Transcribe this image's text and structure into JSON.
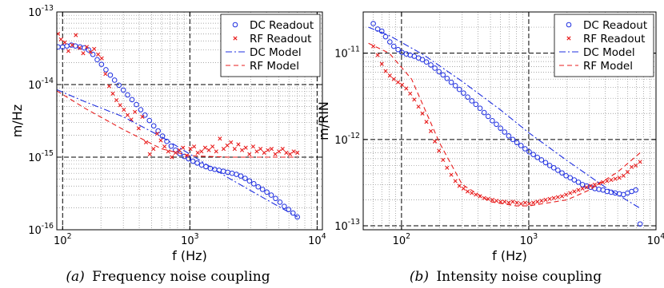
{
  "figure": {
    "caption_a_tag": "(a)",
    "caption_a_text": "Frequency noise coupling",
    "caption_b_tag": "(b)",
    "caption_b_text": "Intensity noise coupling"
  },
  "chart_data": [
    {
      "type": "scatter",
      "panel": "a",
      "xlabel": "f (Hz)",
      "ylabel": "m/Hz",
      "x_scale": "log",
      "y_scale": "log",
      "xlim": [
        90,
        11000
      ],
      "ylim": [
        1e-16,
        1e-13
      ],
      "x_ticks": [
        100,
        1000,
        10000
      ],
      "x_tick_labels": [
        "10^2",
        "10^3",
        "10^4"
      ],
      "y_ticks": [
        1e-16,
        1e-15,
        1e-14,
        1e-13
      ],
      "y_tick_labels": [
        "10^-16",
        "10^-15",
        "10^-14",
        "10^-13"
      ],
      "grid": true,
      "legend_position": "top-right",
      "series": [
        {
          "name": "DC Readout",
          "style": "marker",
          "marker": "circle",
          "color": "#1f2fe0",
          "x": [
            92,
            100,
            108,
            117,
            126,
            137,
            148,
            160,
            173,
            187,
            202,
            219,
            237,
            256,
            277,
            300,
            324,
            351,
            380,
            411,
            444,
            481,
            520,
            563,
            609,
            659,
            713,
            771,
            834,
            903,
            977,
            1057,
            1143,
            1237,
            1338,
            1448,
            1566,
            1695,
            1833,
            1984,
            2146,
            2322,
            2512,
            2718,
            2941,
            3181,
            3442,
            3724,
            4029,
            4359,
            4716,
            5102,
            5520,
            5972,
            6461,
            6990
          ],
          "y": [
            3.3e-14,
            3.3e-14,
            3.4e-14,
            3.5e-14,
            3.4e-14,
            3.3e-14,
            3.2e-14,
            3e-14,
            2.6e-14,
            2.2e-14,
            1.9e-14,
            1.6e-14,
            1.35e-14,
            1.15e-14,
            9.8e-15,
            8.4e-15,
            7.2e-15,
            6.2e-15,
            5.3e-15,
            4.5e-15,
            3.8e-15,
            3.2e-15,
            2.7e-15,
            2.3e-15,
            1.95e-15,
            1.65e-15,
            1.42e-15,
            1.25e-15,
            1.12e-15,
            1.02e-15,
            9.5e-16,
            8.8e-16,
            8.3e-16,
            7.8e-16,
            7.4e-16,
            7e-16,
            6.8e-16,
            6.6e-16,
            6.4e-16,
            6.2e-16,
            6e-16,
            5.8e-16,
            5.5e-16,
            5.1e-16,
            4.7e-16,
            4.3e-16,
            3.9e-16,
            3.6e-16,
            3.3e-16,
            3e-16,
            2.7e-16,
            2.4e-16,
            2.1e-16,
            1.9e-16,
            1.7e-16,
            1.5e-16
          ]
        },
        {
          "name": "RF Readout",
          "style": "marker",
          "marker": "x",
          "color": "#e81c1c",
          "x": [
            92,
            97,
            104,
            111,
            119,
            127,
            136,
            145,
            155,
            166,
            177,
            190,
            203,
            217,
            232,
            248,
            265,
            283,
            303,
            324,
            346,
            370,
            396,
            423,
            452,
            484,
            517,
            553,
            591,
            632,
            676,
            722,
            772,
            826,
            883,
            944,
            1009,
            1079,
            1153,
            1233,
            1318,
            1409,
            1506,
            1610,
            1722,
            1841,
            1968,
            2103,
            2249,
            2404,
            2570,
            2748,
            2937,
            3140,
            3357,
            3589,
            3837,
            4102,
            4385,
            4688,
            5011,
            5357,
            5727,
            6123,
            6545,
            6997
          ],
          "y": [
            5e-14,
            4.2e-14,
            3.8e-14,
            2.9e-14,
            3.5e-14,
            4.8e-14,
            3.2e-14,
            2.7e-14,
            3.3e-14,
            2.8e-14,
            3.1e-14,
            2.6e-14,
            2.3e-14,
            1.4e-14,
            9.5e-15,
            7.5e-15,
            6.1e-15,
            5.2e-15,
            4.5e-15,
            3.8e-15,
            3.3e-15,
            4.2e-15,
            2.5e-15,
            3.6e-15,
            1.6e-15,
            1.1e-15,
            1.3e-15,
            2.1e-15,
            1.7e-15,
            1.4e-15,
            1.2e-15,
            1e-15,
            1.15e-15,
            1.25e-15,
            1.35e-15,
            1.05e-15,
            1.3e-15,
            1.4e-15,
            1.15e-15,
            1.2e-15,
            1.35e-15,
            1.25e-15,
            1.4e-15,
            1.2e-15,
            1.8e-15,
            1.3e-15,
            1.45e-15,
            1.6e-15,
            1.3e-15,
            1.5e-15,
            1.25e-15,
            1.35e-15,
            1.1e-15,
            1.4e-15,
            1.2e-15,
            1.3e-15,
            1.15e-15,
            1.25e-15,
            1.3e-15,
            1.1e-15,
            1.2e-15,
            1.3e-15,
            1.15e-15,
            1.1e-15,
            1.2e-15,
            1.15e-15
          ]
        },
        {
          "name": "DC Model",
          "style": "dashdot",
          "color": "#1f2fe0",
          "x": [
            90,
            150,
            300,
            600,
            1000,
            2000,
            4000,
            7000
          ],
          "y": [
            8.5e-15,
            5.8e-15,
            3.6e-15,
            1.9e-15,
            1.1e-15,
            5.2e-16,
            2.6e-16,
            1.5e-16
          ]
        },
        {
          "name": "RF Model",
          "style": "dashed",
          "color": "#e81c1c",
          "x": [
            90,
            150,
            300,
            600,
            1000,
            2000,
            4000,
            7000
          ],
          "y": [
            8.2e-15,
            4.7e-15,
            2.4e-15,
            1.3e-15,
            1.05e-15,
            1e-15,
            1e-15,
            1e-15
          ]
        }
      ]
    },
    {
      "type": "scatter",
      "panel": "b",
      "xlabel": "f (Hz)",
      "ylabel": "m/RIN",
      "x_scale": "log",
      "y_scale": "log",
      "xlim": [
        50,
        10000
      ],
      "ylim": [
        9e-14,
        3e-11
      ],
      "x_ticks": [
        100,
        1000,
        10000
      ],
      "x_tick_labels": [
        "10^2",
        "10^3",
        "10^4"
      ],
      "y_ticks": [
        1e-13,
        1e-12,
        1e-11
      ],
      "y_tick_labels": [
        "10^-13",
        "10^-12",
        "10^-11"
      ],
      "grid": true,
      "legend_position": "top-right",
      "series": [
        {
          "name": "DC Readout",
          "style": "marker",
          "marker": "circle",
          "color": "#1f2fe0",
          "x": [
            60,
            65,
            70,
            75,
            81,
            87,
            94,
            101,
            109,
            117,
            126,
            136,
            146,
            157,
            170,
            183,
            197,
            212,
            228,
            246,
            265,
            285,
            307,
            331,
            357,
            384,
            414,
            446,
            480,
            517,
            557,
            600,
            646,
            696,
            749,
            807,
            869,
            936,
            1008,
            1086,
            1169,
            1259,
            1356,
            1461,
            1573,
            1694,
            1825,
            1965,
            2117,
            2279,
            2455,
            2644,
            2847,
            3066,
            3302,
            3556,
            3830,
            4125,
            4442,
            4784,
            5152,
            5549,
            5976,
            6436,
            6931,
            7500
          ],
          "y": [
            2.2e-11,
            1.9e-11,
            1.8e-11,
            1.55e-11,
            1.35e-11,
            1.2e-11,
            1.1e-11,
            1.02e-11,
            9.8e-12,
            9.5e-12,
            9.2e-12,
            8.8e-12,
            8.4e-12,
            7.9e-12,
            7.3e-12,
            6.7e-12,
            6.1e-12,
            5.6e-12,
            5.1e-12,
            4.6e-12,
            4.2e-12,
            3.8e-12,
            3.45e-12,
            3.1e-12,
            2.8e-12,
            2.55e-12,
            2.3e-12,
            2.05e-12,
            1.85e-12,
            1.65e-12,
            1.5e-12,
            1.35e-12,
            1.22e-12,
            1.1e-12,
            1e-12,
            9.2e-13,
            8.5e-13,
            7.8e-13,
            7.2e-13,
            6.7e-13,
            6.2e-13,
            5.8e-13,
            5.4e-13,
            5e-13,
            4.7e-13,
            4.4e-13,
            4.1e-13,
            3.8e-13,
            3.6e-13,
            3.4e-13,
            3.2e-13,
            3e-13,
            2.9e-13,
            2.8e-13,
            2.7e-13,
            2.65e-13,
            2.6e-13,
            2.5e-13,
            2.45e-13,
            2.4e-13,
            2.35e-13,
            2.3e-13,
            2.4e-13,
            2.5e-13,
            2.6e-13,
            1.05e-13
          ]
        },
        {
          "name": "RF Readout",
          "style": "marker",
          "marker": "x",
          "color": "#e81c1c",
          "x": [
            60,
            65,
            70,
            75,
            81,
            87,
            94,
            101,
            109,
            117,
            126,
            136,
            146,
            157,
            170,
            183,
            197,
            212,
            228,
            246,
            265,
            285,
            307,
            331,
            357,
            384,
            414,
            446,
            480,
            517,
            557,
            600,
            646,
            696,
            749,
            807,
            869,
            936,
            1008,
            1086,
            1169,
            1259,
            1356,
            1461,
            1573,
            1694,
            1825,
            1965,
            2117,
            2279,
            2455,
            2644,
            2847,
            3066,
            3302,
            3556,
            3830,
            4125,
            4442,
            4784,
            5152,
            5549,
            5976,
            6436,
            6931,
            7500
          ],
          "y": [
            1.2e-11,
            9.5e-12,
            7.5e-12,
            6.2e-12,
            5.5e-12,
            5e-12,
            4.6e-12,
            4.3e-12,
            3.9e-12,
            3.4e-12,
            2.9e-12,
            2.4e-12,
            2e-12,
            1.6e-12,
            1.25e-12,
            9.5e-13,
            7.4e-13,
            5.8e-13,
            4.7e-13,
            3.9e-13,
            3.3e-13,
            2.9e-13,
            2.7e-13,
            2.5e-13,
            2.4e-13,
            2.3e-13,
            2.2e-13,
            2.1e-13,
            2.05e-13,
            2e-13,
            1.95e-13,
            1.9e-13,
            1.9e-13,
            1.85e-13,
            1.9e-13,
            1.85e-13,
            1.8e-13,
            1.85e-13,
            1.8e-13,
            1.85e-13,
            1.9e-13,
            1.95e-13,
            2e-13,
            2.05e-13,
            2.1e-13,
            2.15e-13,
            2.2e-13,
            2.3e-13,
            2.4e-13,
            2.5e-13,
            2.6e-13,
            2.7e-13,
            2.8e-13,
            2.9e-13,
            3e-13,
            3.1e-13,
            3.2e-13,
            3.3e-13,
            3.4e-13,
            3.5e-13,
            3.6e-13,
            3.8e-13,
            4.2e-13,
            4.8e-13,
            5e-13,
            5.5e-13
          ]
        },
        {
          "name": "DC Model",
          "style": "dashdot",
          "color": "#1f2fe0",
          "x": [
            55,
            80,
            150,
            300,
            600,
            1000,
            2000,
            4000,
            7500
          ],
          "y": [
            2e-11,
            1.6e-11,
            9.5e-12,
            4.7e-12,
            2.2e-12,
            1.2e-12,
            5.7e-13,
            2.8e-13,
            1.6e-13
          ]
        },
        {
          "name": "RF Model",
          "style": "dashed",
          "color": "#e81c1c",
          "x": [
            55,
            80,
            120,
            200,
            300,
            500,
            800,
            1000,
            2000,
            3000,
            5000,
            7500
          ],
          "y": [
            1.3e-11,
            1e-11,
            5e-12,
            9e-13,
            3e-13,
            1.9e-13,
            1.7e-13,
            1.7e-13,
            2e-13,
            2.6e-13,
            4.2e-13,
            7e-13
          ]
        }
      ]
    }
  ]
}
